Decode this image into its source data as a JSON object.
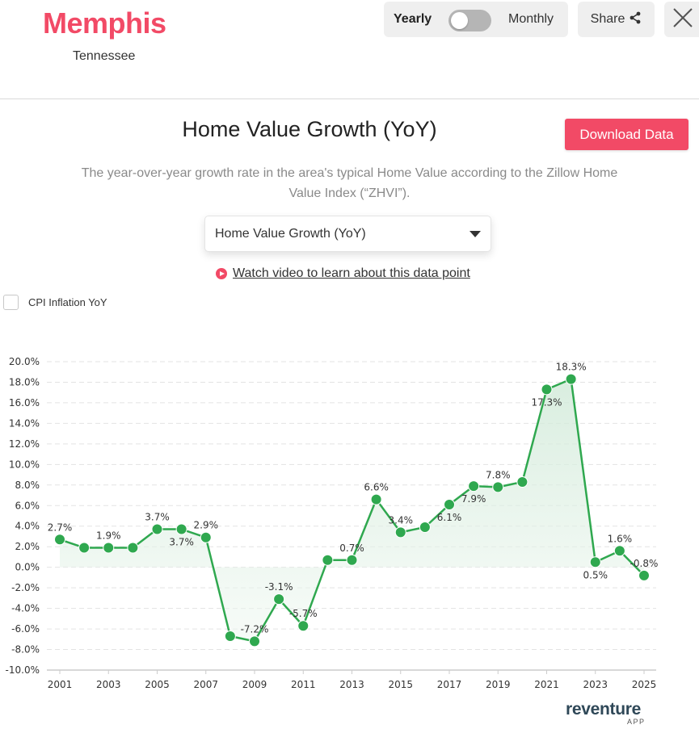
{
  "header": {
    "city": "Memphis",
    "state": "Tennessee",
    "toggle": {
      "left_label": "Yearly",
      "right_label": "Monthly",
      "selected": "Yearly"
    },
    "share_label": "Share",
    "share_icon": "share-icon",
    "close_icon": "close-icon"
  },
  "main": {
    "title": "Home Value Growth (YoY)",
    "download_label": "Download Data",
    "description": "The year-over-year growth rate in the area's typical Home Value according to the Zillow Home Value Index (“ZHVI”).",
    "metric_select": {
      "value": "Home Value Growth (YoY)"
    },
    "video_link": "Watch video to learn about this data point",
    "cpi_checkbox": {
      "label": "CPI Inflation YoY",
      "checked": false
    }
  },
  "colors": {
    "accent": "#f24a66",
    "line": "#2fa84f",
    "fill": "#e6f4ea",
    "grid": "#e3e3e3"
  },
  "logo": {
    "name": "reventure",
    "sub": "APP"
  },
  "chart_data": {
    "type": "line",
    "title": "Home Value Growth (YoY)",
    "xlabel": "",
    "ylabel": "",
    "x": [
      2001,
      2002,
      2003,
      2004,
      2005,
      2006,
      2007,
      2008,
      2009,
      2010,
      2011,
      2012,
      2013,
      2014,
      2015,
      2016,
      2017,
      2018,
      2019,
      2020,
      2021,
      2022,
      2023,
      2024,
      2025
    ],
    "series": [
      {
        "name": "Home Value Growth (YoY)",
        "values": [
          2.7,
          1.9,
          1.9,
          1.9,
          3.7,
          3.7,
          2.9,
          -6.7,
          -7.2,
          -3.1,
          -5.7,
          0.7,
          0.7,
          6.6,
          3.4,
          3.9,
          6.1,
          7.9,
          7.8,
          8.3,
          17.3,
          18.3,
          0.5,
          1.6,
          -0.8
        ]
      }
    ],
    "data_labels": [
      {
        "x": 2001,
        "text": "2.7%",
        "pos": "above"
      },
      {
        "x": 2003,
        "text": "1.9%",
        "pos": "above"
      },
      {
        "x": 2005,
        "text": "3.7%",
        "pos": "above"
      },
      {
        "x": 2006,
        "text": "3.7%",
        "pos": "below"
      },
      {
        "x": 2007,
        "text": "2.9%",
        "pos": "above"
      },
      {
        "x": 2009,
        "text": "-7.2%",
        "pos": "above"
      },
      {
        "x": 2010,
        "text": "-3.1%",
        "pos": "above"
      },
      {
        "x": 2011,
        "text": "-5.7%",
        "pos": "above"
      },
      {
        "x": 2013,
        "text": "0.7%",
        "pos": "above"
      },
      {
        "x": 2014,
        "text": "6.6%",
        "pos": "above"
      },
      {
        "x": 2015,
        "text": "3.4%",
        "pos": "above"
      },
      {
        "x": 2017,
        "text": "6.1%",
        "pos": "below"
      },
      {
        "x": 2018,
        "text": "7.9%",
        "pos": "below"
      },
      {
        "x": 2019,
        "text": "7.8%",
        "pos": "above"
      },
      {
        "x": 2021,
        "text": "17.3%",
        "pos": "below"
      },
      {
        "x": 2022,
        "text": "18.3%",
        "pos": "above"
      },
      {
        "x": 2023,
        "text": "0.5%",
        "pos": "below"
      },
      {
        "x": 2024,
        "text": "1.6%",
        "pos": "above"
      },
      {
        "x": 2025,
        "text": "-0.8%",
        "pos": "above"
      }
    ],
    "y_ticks": [
      "20.0%",
      "18.0%",
      "16.0%",
      "14.0%",
      "12.0%",
      "10.0%",
      "8.0%",
      "6.0%",
      "4.0%",
      "2.0%",
      "0.0%",
      "-2.0%",
      "-4.0%",
      "-6.0%",
      "-8.0%",
      "-10.0%"
    ],
    "x_ticks": [
      "2001",
      "2003",
      "2005",
      "2007",
      "2009",
      "2011",
      "2013",
      "2015",
      "2017",
      "2019",
      "2021",
      "2023",
      "2025"
    ],
    "ylim": [
      -10,
      20
    ],
    "grid": true,
    "legend": "none"
  }
}
